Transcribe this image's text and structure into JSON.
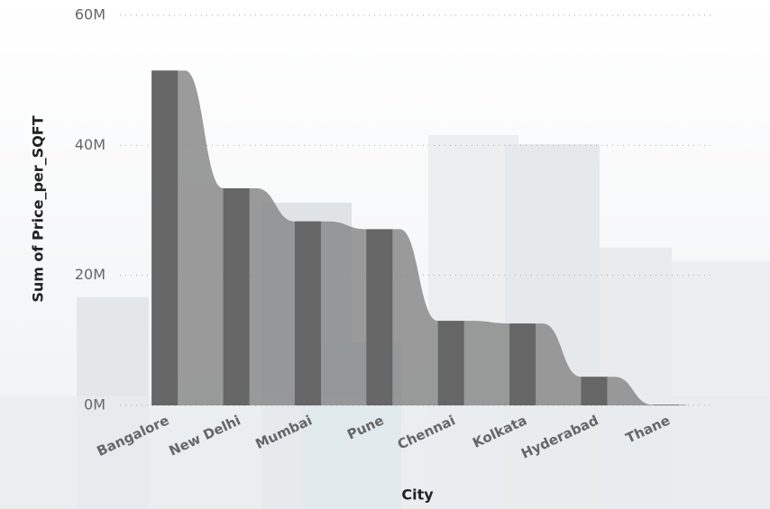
{
  "chart_data": {
    "type": "bar",
    "x_label": "City",
    "y_label": "Sum of Price_per_SQFT",
    "categories": [
      "Bangalore",
      "New Delhi",
      "Mumbai",
      "Pune",
      "Chennai",
      "Kolkata",
      "Hyderabad",
      "Thane"
    ],
    "values": [
      51500000,
      33400000,
      28300000,
      27100000,
      13000000,
      12600000,
      4400000,
      100000
    ],
    "color": "#666666",
    "ribbon_color": "#8a8a8a",
    "ylim": [
      0,
      60000000
    ],
    "yticks": [
      {
        "value": 0,
        "label": "0M"
      },
      {
        "value": 20000000,
        "label": "20M"
      },
      {
        "value": 40000000,
        "label": "40M"
      },
      {
        "value": 60000000,
        "label": "60M"
      }
    ],
    "grid": true
  }
}
